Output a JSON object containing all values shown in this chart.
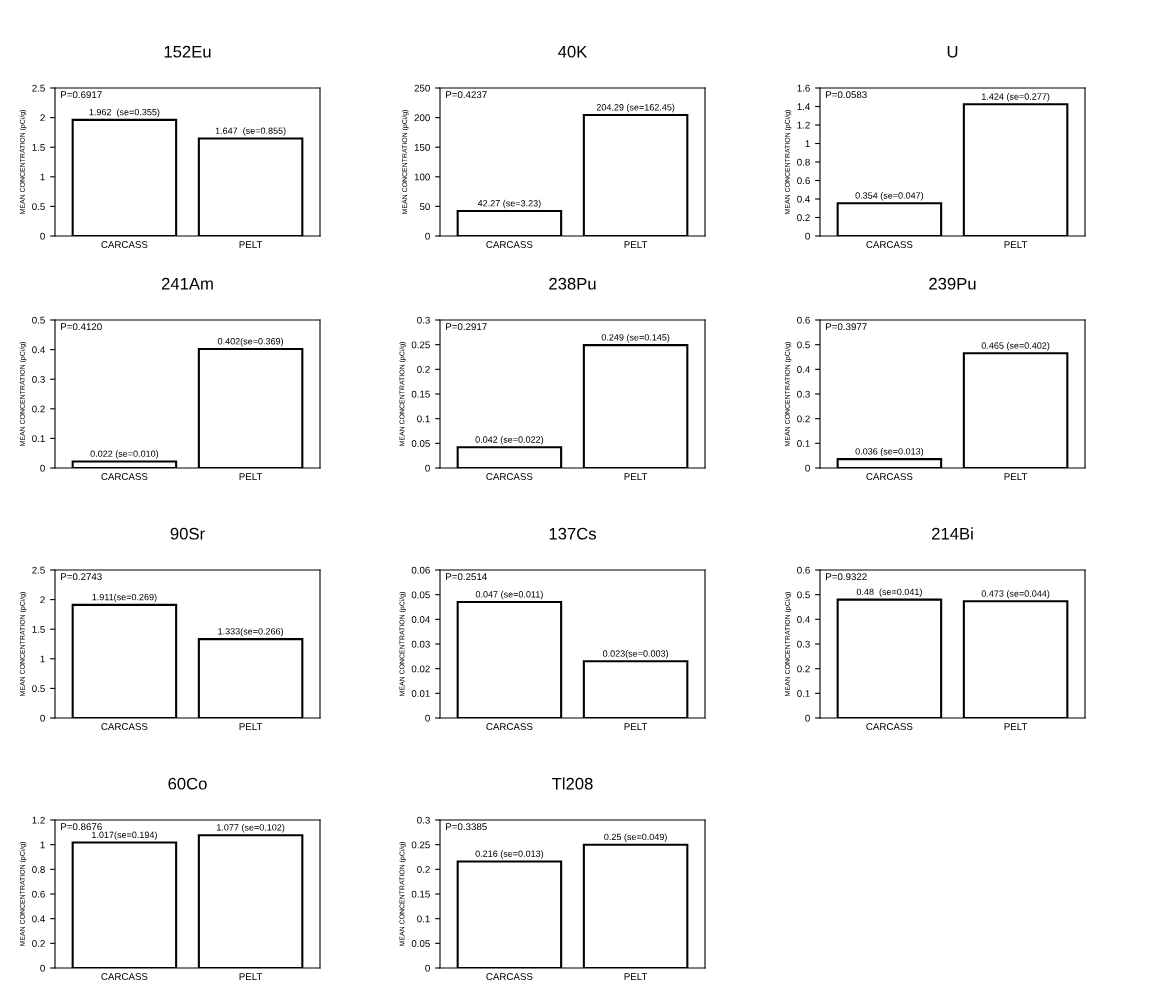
{
  "chart_data": [
    {
      "type": "bar",
      "title": "152Eu",
      "ylabel": "MEAN CONCENTRATION (pCi/g)",
      "categories": [
        "CARCASS",
        "PELT"
      ],
      "values": [
        1.962,
        1.647
      ],
      "value_labels": [
        "1.962  (se=0.355)",
        "1.647  (se=0.855)"
      ],
      "color": "#ffffff",
      "ylim": [
        0,
        2.5
      ],
      "yticks": [
        0,
        0.5,
        1,
        1.5,
        2,
        2.5
      ],
      "annotations": [
        "P=0.6917"
      ],
      "grid": false,
      "legend": false
    },
    {
      "type": "bar",
      "title": "40K",
      "ylabel": "MEAN CONCENTRATION (pCi/g)",
      "categories": [
        "CARCASS",
        "PELT"
      ],
      "values": [
        42.27,
        204.29
      ],
      "value_labels": [
        "42.27 (se=3.23)",
        "204.29 (se=162.45)"
      ],
      "color": "#ffffff",
      "ylim": [
        0,
        250
      ],
      "yticks": [
        0,
        50,
        100,
        150,
        200,
        250
      ],
      "annotations": [
        "P=0.4237"
      ],
      "grid": false,
      "legend": false
    },
    {
      "type": "bar",
      "title": "U",
      "ylabel": "MEAN CONCENTRATION (pCi/g)",
      "categories": [
        "CARCASS",
        "PELT"
      ],
      "values": [
        0.354,
        1.424
      ],
      "value_labels": [
        "0.354 (se=0.047)",
        "1.424 (se=0.277)"
      ],
      "color": "#ffffff",
      "ylim": [
        0,
        1.6
      ],
      "yticks": [
        0,
        0.2,
        0.4,
        0.6,
        0.8,
        1,
        1.2,
        1.4,
        1.6
      ],
      "annotations": [
        "P=0.0583"
      ],
      "grid": false,
      "legend": false
    },
    {
      "type": "bar",
      "title": "241Am",
      "ylabel": "MEAN CONCENTRATION (pCi/g)",
      "categories": [
        "CARCASS",
        "PELT"
      ],
      "values": [
        0.022,
        0.402
      ],
      "value_labels": [
        "0.022 (se=0.010)",
        "0.402(se=0.369)"
      ],
      "color": "#ffffff",
      "ylim": [
        0,
        0.5
      ],
      "yticks": [
        0,
        0.1,
        0.2,
        0.3,
        0.4,
        0.5
      ],
      "annotations": [
        "P=0.4120"
      ],
      "grid": false,
      "legend": false
    },
    {
      "type": "bar",
      "title": "238Pu",
      "ylabel": "MEAN CONCENTRATION (pCi/g)",
      "categories": [
        "CARCASS",
        "PELT"
      ],
      "values": [
        0.042,
        0.249
      ],
      "value_labels": [
        "0.042 (se=0.022)",
        "0.249 (se=0.145)"
      ],
      "color": "#ffffff",
      "ylim": [
        0,
        0.3
      ],
      "yticks": [
        0,
        0.05,
        0.1,
        0.15,
        0.2,
        0.25,
        0.3
      ],
      "annotations": [
        "P=0.2917"
      ],
      "grid": false,
      "legend": false
    },
    {
      "type": "bar",
      "title": "239Pu",
      "ylabel": "MEAN CONCENTRATION (pCi/g)",
      "categories": [
        "CARCASS",
        "PELT"
      ],
      "values": [
        0.036,
        0.465
      ],
      "value_labels": [
        "0.036 (se=0.013)",
        "0.465 (se=0.402)"
      ],
      "color": "#ffffff",
      "ylim": [
        0,
        0.6
      ],
      "yticks": [
        0,
        0.1,
        0.2,
        0.3,
        0.4,
        0.5,
        0.6
      ],
      "annotations": [
        "P=0.3977"
      ],
      "grid": false,
      "legend": false
    },
    {
      "type": "bar",
      "title": "90Sr",
      "ylabel": "MEAN CONCENTRATION (pCi/g)",
      "categories": [
        "CARCASS",
        "PELT"
      ],
      "values": [
        1.911,
        1.333
      ],
      "value_labels": [
        "1.911(se=0.269)",
        "1.333(se=0.266)"
      ],
      "color": "#ffffff",
      "ylim": [
        0,
        2.5
      ],
      "yticks": [
        0,
        0.5,
        1,
        1.5,
        2,
        2.5
      ],
      "annotations": [
        "P=0.2743"
      ],
      "grid": false,
      "legend": false
    },
    {
      "type": "bar",
      "title": "137Cs",
      "ylabel": "MEAN CONCENTRATION (pCi/g)",
      "categories": [
        "CARCASS",
        "PELT"
      ],
      "values": [
        0.047,
        0.023
      ],
      "value_labels": [
        "0.047 (se=0.011)",
        "0.023(se=0.003)"
      ],
      "color": "#ffffff",
      "ylim": [
        0,
        0.06
      ],
      "yticks": [
        0,
        0.01,
        0.02,
        0.03,
        0.04,
        0.05,
        0.06
      ],
      "annotations": [
        "P=0.2514"
      ],
      "grid": false,
      "legend": false
    },
    {
      "type": "bar",
      "title": "214Bi",
      "ylabel": "MEAN CONCENTRATION (pCi/g)",
      "categories": [
        "CARCASS",
        "PELT"
      ],
      "values": [
        0.48,
        0.473
      ],
      "value_labels": [
        "0.48  (se=0.041)",
        "0.473 (se=0.044)"
      ],
      "color": "#ffffff",
      "ylim": [
        0,
        0.6
      ],
      "yticks": [
        0,
        0.1,
        0.2,
        0.3,
        0.4,
        0.5,
        0.6
      ],
      "annotations": [
        "P=0.9322"
      ],
      "grid": false,
      "legend": false
    },
    {
      "type": "bar",
      "title": "60Co",
      "ylabel": "MEAN CONCENTRATION (pCi/g)",
      "categories": [
        "CARCASS",
        "PELT"
      ],
      "values": [
        1.017,
        1.077
      ],
      "value_labels": [
        "1.017(se=0.194)",
        "1.077 (se=0.102)"
      ],
      "color": "#ffffff",
      "ylim": [
        0,
        1.2
      ],
      "yticks": [
        0,
        0.2,
        0.4,
        0.6,
        0.8,
        1,
        1.2
      ],
      "annotations": [
        "P=0.8676"
      ],
      "grid": false,
      "legend": false
    },
    {
      "type": "bar",
      "title": "Tl208",
      "ylabel": "MEAN CONCENTRATION (pCi/g)",
      "categories": [
        "CARCASS",
        "PELT"
      ],
      "values": [
        0.216,
        0.25
      ],
      "value_labels": [
        "0.216 (se=0.013)",
        "0.25 (se=0.049)"
      ],
      "color": "#ffffff",
      "ylim": [
        0,
        0.3
      ],
      "yticks": [
        0,
        0.05,
        0.1,
        0.15,
        0.2,
        0.25,
        0.3
      ],
      "annotations": [
        "P=0.3385"
      ],
      "grid": false,
      "legend": false
    }
  ]
}
